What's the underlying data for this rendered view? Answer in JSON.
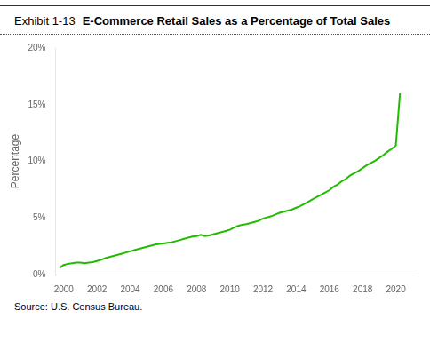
{
  "chart_data": {
    "type": "line",
    "subtitle": "Exhibit 1-13",
    "title": "E-Commerce Retail Sales as a Percentage of Total Sales",
    "y_label": "Percentage",
    "annotations": [
      "Source: U.S. Census Bureau."
    ],
    "x": [
      1999.75,
      2000.0,
      2000.25,
      2000.5,
      2000.75,
      2001.0,
      2001.25,
      2001.5,
      2001.75,
      2002.0,
      2002.25,
      2002.5,
      2002.75,
      2003.0,
      2003.25,
      2003.5,
      2003.75,
      2004.0,
      2004.25,
      2004.5,
      2004.75,
      2005.0,
      2005.25,
      2005.5,
      2005.75,
      2006.0,
      2006.25,
      2006.5,
      2006.75,
      2007.0,
      2007.25,
      2007.5,
      2007.75,
      2008.0,
      2008.25,
      2008.5,
      2008.75,
      2009.0,
      2009.25,
      2009.5,
      2009.75,
      2010.0,
      2010.25,
      2010.5,
      2010.75,
      2011.0,
      2011.25,
      2011.5,
      2011.75,
      2012.0,
      2012.25,
      2012.5,
      2012.75,
      2013.0,
      2013.25,
      2013.5,
      2013.75,
      2014.0,
      2014.25,
      2014.5,
      2014.75,
      2015.0,
      2015.25,
      2015.5,
      2015.75,
      2016.0,
      2016.25,
      2016.5,
      2016.75,
      2017.0,
      2017.25,
      2017.5,
      2017.75,
      2018.0,
      2018.25,
      2018.5,
      2018.75,
      2019.0,
      2019.25,
      2019.5,
      2019.75,
      2020.0,
      2020.25
    ],
    "values": [
      0.6,
      0.85,
      0.95,
      1.0,
      1.05,
      1.05,
      1.0,
      1.05,
      1.1,
      1.2,
      1.3,
      1.45,
      1.55,
      1.65,
      1.75,
      1.85,
      1.95,
      2.05,
      2.15,
      2.25,
      2.35,
      2.45,
      2.55,
      2.65,
      2.7,
      2.75,
      2.8,
      2.85,
      2.95,
      3.05,
      3.15,
      3.25,
      3.35,
      3.4,
      3.5,
      3.4,
      3.45,
      3.55,
      3.65,
      3.75,
      3.85,
      3.95,
      4.15,
      4.3,
      4.4,
      4.45,
      4.55,
      4.65,
      4.75,
      4.95,
      5.05,
      5.15,
      5.3,
      5.45,
      5.55,
      5.65,
      5.75,
      5.9,
      6.05,
      6.25,
      6.45,
      6.65,
      6.85,
      7.05,
      7.25,
      7.45,
      7.75,
      7.95,
      8.25,
      8.45,
      8.75,
      8.95,
      9.15,
      9.4,
      9.65,
      9.85,
      10.05,
      10.3,
      10.55,
      10.85,
      11.1,
      11.4,
      16.0
    ],
    "color": "#22bb00",
    "xlim": [
      1999.5,
      2021.2
    ],
    "xticks": [
      2000,
      2002,
      2004,
      2006,
      2008,
      2010,
      2012,
      2014,
      2016,
      2018,
      2020
    ],
    "ylim": [
      0,
      20
    ],
    "yticks": [
      {
        "value": 0,
        "label": "0%"
      },
      {
        "value": 5,
        "label": "5%"
      },
      {
        "value": 10,
        "label": "10%"
      },
      {
        "value": 15,
        "label": "15%"
      },
      {
        "value": 20,
        "label": "20%"
      }
    ],
    "grid": false
  }
}
